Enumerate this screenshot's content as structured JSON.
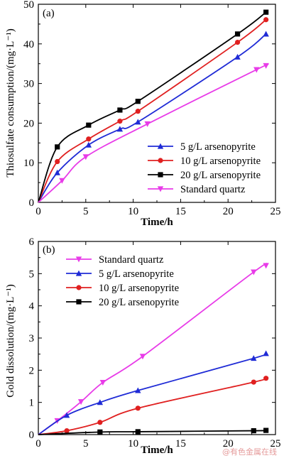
{
  "watermark": "@有色金属在线",
  "chart_data": [
    {
      "type": "line",
      "panel_label": "(a)",
      "xlabel": "Time/h",
      "ylabel": "Thiosulfate consumption/(mg·L⁻¹)",
      "xlim": [
        0,
        25
      ],
      "ylim": [
        0,
        50
      ],
      "xticks": [
        0,
        5,
        10,
        15,
        20,
        25
      ],
      "yticks": [
        0,
        10,
        20,
        30,
        40,
        50
      ],
      "grid": false,
      "legend_position": "bottom-right",
      "series": [
        {
          "name": "5 g/L arsenopyrite",
          "color": "#1f2bd6",
          "marker": "triangle-up",
          "x": [
            0,
            2,
            5.3,
            8.6,
            10.5,
            21,
            24
          ],
          "y": [
            0,
            7.5,
            14.5,
            18.5,
            20.3,
            36.7,
            42.5
          ]
        },
        {
          "name": "10 g/L arsenopyrite",
          "color": "#e02020",
          "marker": "circle",
          "x": [
            0,
            2,
            5.3,
            8.6,
            10.5,
            21,
            24
          ],
          "y": [
            0,
            10.3,
            16,
            20.5,
            23,
            40.4,
            46.1
          ]
        },
        {
          "name": "20 g/L arsenopyrite",
          "color": "#000000",
          "marker": "square",
          "x": [
            0,
            2,
            5.3,
            8.6,
            10.5,
            21,
            24
          ],
          "y": [
            0,
            14,
            19.5,
            23.3,
            25.5,
            42.5,
            48
          ]
        },
        {
          "name": "Standard quartz",
          "color": "#e83be8",
          "marker": "triangle-down",
          "x": [
            0,
            2.5,
            5,
            11.5,
            23,
            24
          ],
          "y": [
            0,
            5.5,
            11.5,
            19.8,
            33.5,
            34.5
          ]
        }
      ]
    },
    {
      "type": "line",
      "panel_label": "(b)",
      "xlabel": "Time/h",
      "ylabel": "Gold dissolution/(mg·L⁻¹)",
      "xlim": [
        0,
        25
      ],
      "ylim": [
        0,
        6
      ],
      "xticks": [
        0,
        5,
        10,
        15,
        20,
        25
      ],
      "yticks": [
        0,
        1,
        2,
        3,
        4,
        5,
        6
      ],
      "grid": false,
      "legend_position": "top-left",
      "series": [
        {
          "name": "Standard quartz",
          "color": "#e83be8",
          "marker": "triangle-down",
          "x": [
            0,
            2,
            4.5,
            6.8,
            11,
            22.7,
            24
          ],
          "y": [
            0,
            0.43,
            1.02,
            1.62,
            2.43,
            5.05,
            5.25
          ]
        },
        {
          "name": "5 g/L arsenopyrite",
          "color": "#1f2bd6",
          "marker": "triangle-up",
          "x": [
            0,
            3,
            6.5,
            10.5,
            22.7,
            24
          ],
          "y": [
            0,
            0.6,
            1.0,
            1.37,
            2.37,
            2.52
          ]
        },
        {
          "name": "10 g/L arsenopyrite",
          "color": "#e02020",
          "marker": "circle",
          "x": [
            0,
            3,
            6.5,
            10.5,
            22.7,
            24
          ],
          "y": [
            0,
            0.12,
            0.38,
            0.82,
            1.63,
            1.75
          ]
        },
        {
          "name": "20 g/L arsenopyrite",
          "color": "#000000",
          "marker": "square",
          "x": [
            0,
            6.5,
            10.5,
            22.7,
            24
          ],
          "y": [
            0,
            0.08,
            0.09,
            0.12,
            0.13
          ]
        }
      ]
    }
  ]
}
